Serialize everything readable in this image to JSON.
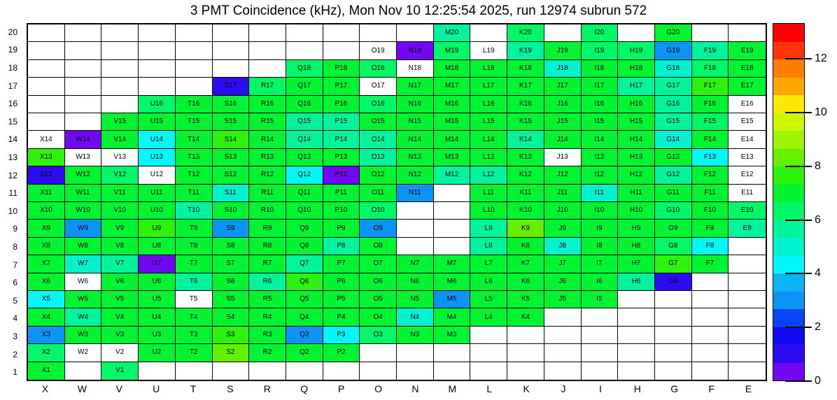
{
  "chart_data": {
    "type": "heatmap",
    "title": "3 PMT Coincidence (kHz), Mon Nov 10 12:25:54 2025, run 12974 subrun 572",
    "unit": "kHz",
    "x_categories": [
      "X",
      "W",
      "V",
      "U",
      "T",
      "S",
      "R",
      "Q",
      "P",
      "O",
      "N",
      "M",
      "L",
      "K",
      "J",
      "I",
      "H",
      "G",
      "F",
      "E"
    ],
    "y_categories_top_to_bottom": [
      "20",
      "19",
      "18",
      "17",
      "16",
      "15",
      "14",
      "13",
      "12",
      "11",
      "10",
      "9",
      "8",
      "7",
      "6",
      "5",
      "4",
      "3",
      "2",
      "1"
    ],
    "grid_lines": "on",
    "legend_position": "right-colorbar",
    "colorbar": {
      "min": 0,
      "max": 13.33,
      "ticks": [
        12,
        10,
        8,
        6,
        4,
        2,
        0
      ],
      "band_colors_top_to_bottom": [
        "#ff0000",
        "#ff3508",
        "#ff7d00",
        "#ffa600",
        "#ffe800",
        "#d0f500",
        "#9cf500",
        "#66f000",
        "#2cf20c",
        "#00f432",
        "#00f768",
        "#00f49e",
        "#00f2cf",
        "#00f8f8",
        "#0ab4f5",
        "#0a94f5",
        "#0744f5",
        "#0f0cf2",
        "#2e0cf2",
        "#7208f0"
      ]
    },
    "palette": {
      "w": "#ffffff",
      "v": "#7208f0",
      "bv": "#2e0cf2",
      "db": "#0a94f5",
      "sky": "#0ab4f5",
      "cy": "#00f8f8",
      "tc": "#00f2cf",
      "ts": "#00f49e",
      "sg": "#00f768",
      "g": "#00f432",
      "lg": "#2cf20c",
      "ch": "#66f000"
    },
    "palette_value_khz": {
      "w": null,
      "v": 0.3,
      "bv": 1.0,
      "db": 3.0,
      "sky": 3.7,
      "cy": 4.3,
      "tc": 5.0,
      "ts": 5.7,
      "sg": 6.3,
      "g": 7.0,
      "lg": 7.7,
      "ch": 8.3
    },
    "rows": [
      {
        "y": "20",
        "cells": [
          null,
          null,
          null,
          null,
          null,
          null,
          null,
          null,
          null,
          null,
          null,
          "M20|ts",
          null,
          "K20|sg",
          null,
          "I20|sg",
          null,
          "G20|g",
          null,
          null
        ]
      },
      {
        "y": "19",
        "cells": [
          null,
          null,
          null,
          null,
          null,
          null,
          null,
          null,
          null,
          "O19|w",
          "N19|v",
          "M19|sg",
          "L19|w",
          "K19|ts",
          "J19|g",
          "I19|sg",
          "H19|sg",
          "G19|db",
          "F19|ts",
          "E19|g"
        ]
      },
      {
        "y": "18",
        "cells": [
          null,
          null,
          null,
          null,
          null,
          null,
          null,
          "Q18|sg",
          "P18|g",
          "O18|sg",
          "N18|w",
          "M18|g",
          "L18|g",
          "K18|g",
          "J18|tc",
          "I18|g",
          "H18|g",
          "G18|tc",
          "F18|sg",
          "E18|g"
        ]
      },
      {
        "y": "17",
        "cells": [
          null,
          null,
          null,
          null,
          null,
          "S17|bv",
          "R17|sg",
          "Q17|g",
          "P17|g",
          "O17|w",
          "N17|g",
          "M17|g",
          "L17|g",
          "K17|g",
          "J17|g",
          "I17|g",
          "H17|ts",
          "G17|ts",
          "F17|lg",
          "E17|g"
        ]
      },
      {
        "y": "16",
        "cells": [
          null,
          null,
          null,
          "U16|sg",
          "T16|g",
          "S16|g",
          "R16|g",
          "Q16|g",
          "P16|g",
          "O16|sg",
          "N16|g",
          "M16|g",
          "L16|g",
          "K16|g",
          "J16|g",
          "I16|g",
          "H16|g",
          "G16|ts",
          "F16|g",
          "E16|w"
        ]
      },
      {
        "y": "15",
        "cells": [
          null,
          null,
          "V15|g",
          "U15|g",
          "T15|g",
          "S15|g",
          "R15|g",
          "Q15|ts",
          "P15|ts",
          "O15|g",
          "N15|g",
          "M15|g",
          "L15|g",
          "K15|g",
          "J15|g",
          "I15|g",
          "H15|g",
          "G15|ts",
          "F15|sg",
          "E15|w"
        ]
      },
      {
        "y": "14",
        "cells": [
          "X14|w",
          "W14|v",
          "V14|g",
          "U14|cy",
          "T14|g",
          "S14|lg",
          "R14|g",
          "Q14|ts",
          "P14|ts",
          "O14|ts",
          "N14|g",
          "M14|g",
          "L14|g",
          "K14|ts",
          "J14|g",
          "I14|g",
          "H14|g",
          "G14|tc",
          "F14|g",
          "E14|w"
        ]
      },
      {
        "y": "13",
        "cells": [
          "X13|lg",
          "W13|w",
          "V13|w",
          "U13|cy",
          "T13|g",
          "S13|g",
          "R13|g",
          "Q13|g",
          "P13|g",
          "O13|ts",
          "N13|g",
          "M13|g",
          "L13|g",
          "K13|g",
          "J13|w",
          "I13|g",
          "H13|g",
          "G13|g",
          "F13|cy",
          "E13|w"
        ]
      },
      {
        "y": "12",
        "cells": [
          "X12|bv",
          "W12|g",
          "V12|sg",
          "U12|w",
          "T12|g",
          "S12|g",
          "R12|g",
          "Q12|cy",
          "P12|v",
          "O12|g",
          "N12|g",
          "M12|ts",
          "L12|ts",
          "K12|g",
          "J12|g",
          "I12|g",
          "H12|g",
          "G12|ts",
          "F12|g",
          "E12|w"
        ]
      },
      {
        "y": "11",
        "cells": [
          "X11|g",
          "W11|g",
          "V11|g",
          "U11|g",
          "T11|g",
          "S11|tc",
          "R11|g",
          "Q11|g",
          "P11|g",
          "O11|g",
          "N11|db",
          null,
          "L11|g",
          "K11|g",
          "J11|g",
          "I11|tc",
          "H11|g",
          "G11|g",
          "F11|g",
          "E11|w"
        ]
      },
      {
        "y": "10",
        "cells": [
          "X10|g",
          "W10|g",
          "V10|g",
          "U10|g",
          "T10|ts",
          "S10|g",
          "R10|g",
          "Q10|g",
          "P10|g",
          "O10|sg",
          null,
          null,
          "L10|g",
          "K10|g",
          "J10|g",
          "I10|g",
          "H10|g",
          "G10|sg",
          "F10|g",
          "E10|sg"
        ]
      },
      {
        "y": "9",
        "cells": [
          "X9|g",
          "W9|db",
          "V9|g",
          "U9|lg",
          "T9|g",
          "S9|db",
          "R9|g",
          "Q9|g",
          "P9|g",
          "O9|db",
          null,
          null,
          "L9|ts",
          "K9|ch",
          "J9|g",
          "I9|g",
          "H9|g",
          "G9|g",
          "F9|g",
          "E9|ts"
        ]
      },
      {
        "y": "8",
        "cells": [
          "X8|g",
          "W8|g",
          "V8|g",
          "U8|g",
          "T8|g",
          "S8|g",
          "R8|g",
          "Q8|g",
          "P8|ts",
          "O8|g",
          null,
          null,
          "L8|ts",
          "K8|g",
          "J8|tc",
          "I8|g",
          "H8|g",
          "G8|sg",
          "F8|cy",
          null
        ]
      },
      {
        "y": "7",
        "cells": [
          "X7|g",
          "W7|tc",
          "V7|ts",
          "U7|v",
          "T7|g",
          "S7|g",
          "R7|g",
          "Q7|ts",
          "P7|g",
          "O7|g",
          "N7|g",
          "M7|g",
          "L7|g",
          "K7|g",
          "J7|g",
          "I7|g",
          "H7|g",
          "G7|lg",
          "F7|g",
          null
        ]
      },
      {
        "y": "6",
        "cells": [
          "X6|g",
          "W6|w",
          "V6|g",
          "U6|g",
          "T6|ts",
          "S6|g",
          "R6|ts",
          "Q6|lg",
          "P6|g",
          "O6|g",
          "N6|g",
          "M6|g",
          "L6|g",
          "K6|g",
          "J6|g",
          "I6|g",
          "H6|ts",
          "G6|bv",
          null,
          null
        ]
      },
      {
        "y": "5",
        "cells": [
          "X5|cy",
          "W5|g",
          "V5|g",
          "U5|g",
          "T5|w",
          "S5|g",
          "R5|g",
          "Q5|g",
          "P5|g",
          "O5|g",
          "N5|g",
          "M5|db",
          "L5|g",
          "K5|g",
          "J5|g",
          "I5|g",
          null,
          null,
          null,
          null
        ]
      },
      {
        "y": "4",
        "cells": [
          "X4|g",
          "W4|ts",
          "V4|g",
          "U4|g",
          "T4|g",
          "S4|g",
          "R4|g",
          "Q4|g",
          "P4|g",
          "O4|g",
          "N4|tc",
          "M4|g",
          "L4|g",
          "K4|g",
          null,
          null,
          null,
          null,
          null,
          null
        ]
      },
      {
        "y": "3",
        "cells": [
          "X3|db",
          "W3|g",
          "V3|g",
          "U3|g",
          "T3|g",
          "S3|lg",
          "R3|g",
          "Q3|db",
          "P3|cy",
          "O3|sg",
          "N3|g",
          "M3|g",
          null,
          null,
          null,
          null,
          null,
          null,
          null,
          null
        ]
      },
      {
        "y": "2",
        "cells": [
          "X2|sg",
          "W2|w",
          "V2|w",
          "U2|g",
          "T2|g",
          "S2|ch",
          "R2|g",
          "Q2|g",
          "P2|g",
          null,
          null,
          null,
          null,
          null,
          null,
          null,
          null,
          null,
          null,
          null
        ]
      },
      {
        "y": "1",
        "cells": [
          "X1|g",
          null,
          "V1|sg",
          null,
          null,
          null,
          null,
          null,
          null,
          null,
          null,
          null,
          null,
          null,
          null,
          null,
          null,
          null,
          null,
          null
        ]
      }
    ]
  }
}
